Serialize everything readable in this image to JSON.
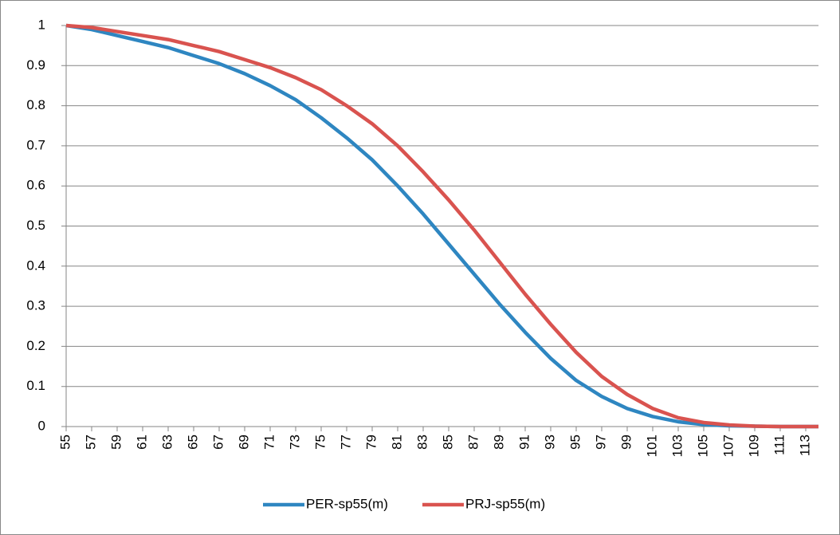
{
  "chart_data": {
    "type": "line",
    "x": [
      55,
      57,
      59,
      61,
      63,
      65,
      67,
      69,
      71,
      73,
      75,
      77,
      79,
      81,
      83,
      85,
      87,
      89,
      91,
      93,
      95,
      97,
      99,
      101,
      103,
      105,
      107,
      109,
      111,
      113,
      114
    ],
    "series": [
      {
        "name": "PER-sp55(m)",
        "color": "#2e86c1",
        "values": [
          1.0,
          0.99,
          0.975,
          0.96,
          0.945,
          0.925,
          0.905,
          0.88,
          0.85,
          0.815,
          0.77,
          0.72,
          0.665,
          0.6,
          0.53,
          0.455,
          0.38,
          0.305,
          0.235,
          0.17,
          0.115,
          0.075,
          0.045,
          0.025,
          0.012,
          0.005,
          0.002,
          0.001,
          0,
          0,
          0
        ]
      },
      {
        "name": "PRJ-sp55(m)",
        "color": "#d9534f",
        "values": [
          1.0,
          0.995,
          0.985,
          0.975,
          0.965,
          0.95,
          0.935,
          0.915,
          0.895,
          0.87,
          0.84,
          0.8,
          0.755,
          0.7,
          0.635,
          0.565,
          0.49,
          0.41,
          0.33,
          0.255,
          0.185,
          0.125,
          0.08,
          0.045,
          0.022,
          0.01,
          0.004,
          0.001,
          0,
          0,
          0
        ]
      }
    ],
    "xlim": [
      55,
      114
    ],
    "xticks": [
      55,
      57,
      59,
      61,
      63,
      65,
      67,
      69,
      71,
      73,
      75,
      77,
      79,
      81,
      83,
      85,
      87,
      89,
      91,
      93,
      95,
      97,
      99,
      101,
      103,
      105,
      107,
      109,
      111,
      113
    ],
    "ylim": [
      0,
      1
    ],
    "yticks": [
      0,
      0.1,
      0.2,
      0.3,
      0.4,
      0.5,
      0.6,
      0.7,
      0.8,
      0.9,
      1
    ],
    "grid": true,
    "legend": "bottom"
  }
}
